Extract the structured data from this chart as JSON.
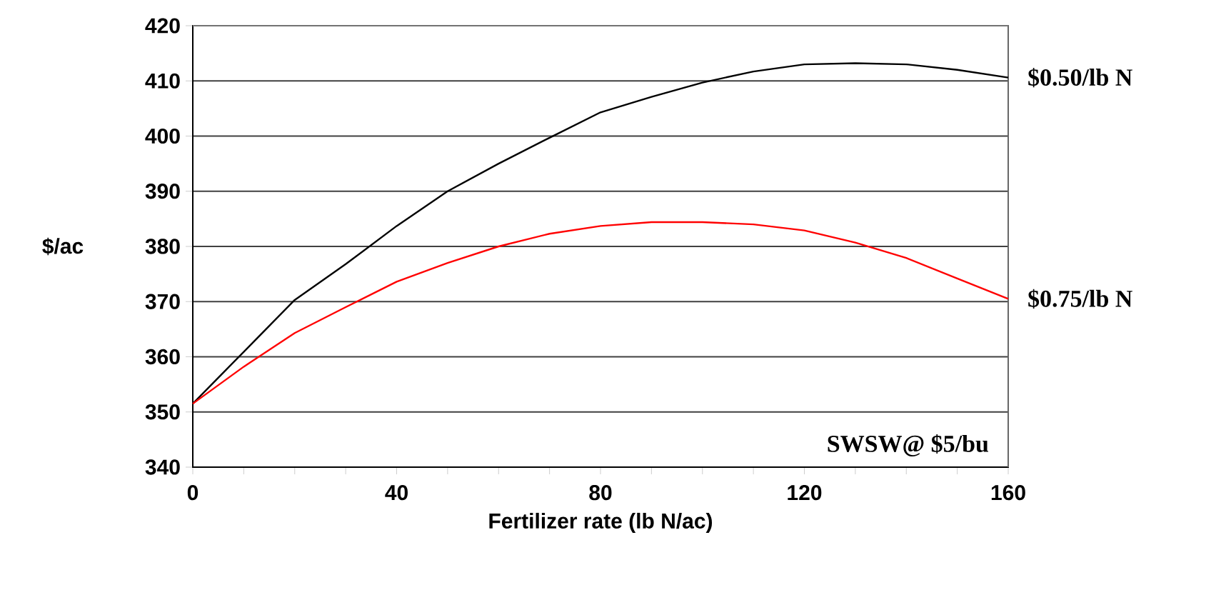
{
  "chart_data": {
    "type": "line",
    "xlabel": "Fertilizer rate (lb N/ac)",
    "ylabel": "$/ac",
    "x": [
      0,
      10,
      20,
      30,
      40,
      50,
      60,
      70,
      80,
      90,
      100,
      110,
      120,
      130,
      140,
      150,
      160
    ],
    "series": [
      {
        "name": "$0.50/lb N",
        "color": "#000000",
        "values": [
          351.5,
          360.9,
          370.3,
          376.8,
          383.7,
          390.0,
          395.0,
          399.7,
          404.3,
          407.1,
          409.7,
          411.7,
          413.0,
          413.2,
          413.0,
          412.0,
          410.6
        ]
      },
      {
        "name": "$0.75/lb N",
        "color": "#ff0000",
        "values": [
          351.5,
          358.2,
          364.3,
          369.0,
          373.6,
          377.0,
          380.0,
          382.3,
          383.7,
          384.4,
          384.4,
          384.0,
          382.9,
          380.7,
          377.9,
          374.2,
          370.5
        ]
      }
    ],
    "xlim": [
      0,
      160
    ],
    "xticks": [
      0,
      {
        "value": 10,
        "label": null
      },
      {
        "value": 20,
        "label": null
      },
      {
        "value": 30,
        "label": null
      },
      40,
      {
        "value": 50,
        "label": null
      },
      {
        "value": 60,
        "label": null
      },
      {
        "value": 70,
        "label": null
      },
      80,
      {
        "value": 90,
        "label": null
      },
      {
        "value": 100,
        "label": null
      },
      {
        "value": 110,
        "label": null
      },
      120,
      {
        "value": 130,
        "label": null
      },
      {
        "value": 140,
        "label": null
      },
      {
        "value": 150,
        "label": null
      },
      160
    ],
    "ylim": [
      340,
      420
    ],
    "yticks": [
      340,
      350,
      360,
      370,
      380,
      390,
      400,
      410,
      420
    ],
    "grid": "y",
    "annotations": [
      "SWSW@ $5/bu"
    ]
  }
}
